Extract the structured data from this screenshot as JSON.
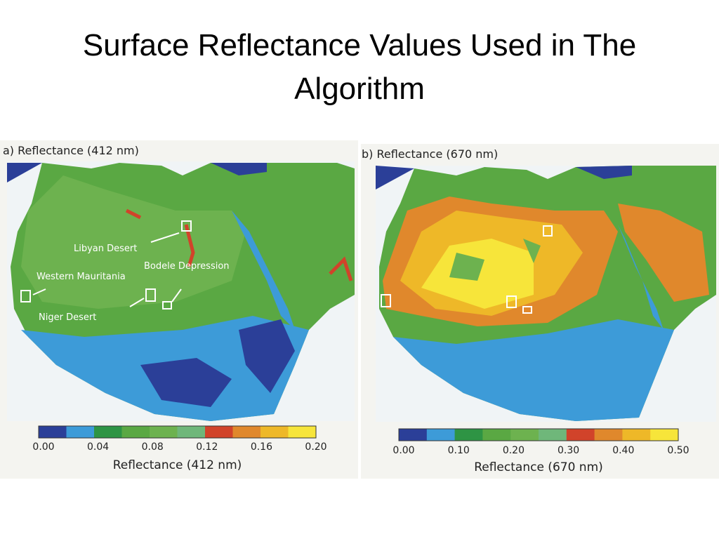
{
  "title": "Surface Reflectance Values Used in The Algorithm",
  "panels": [
    {
      "label": "a) Reflectance (412 nm)",
      "annotations": [
        "Libyan Desert",
        "Western Mauritania",
        "Bodele Depression",
        "Niger Desert"
      ],
      "colorbar": {
        "colors": [
          "#2b3f98",
          "#3d9bd8",
          "#2e9444",
          "#5aa843",
          "#6db24f",
          "#6fb77a",
          "#d1432a",
          "#e0882c",
          "#eeb828",
          "#f7e53a"
        ],
        "ticks": [
          "0.00",
          "0.04",
          "0.08",
          "0.12",
          "0.16",
          "0.20"
        ],
        "label": "Reflectance (412 nm)"
      }
    },
    {
      "label": "b) Reflectance (670 nm)",
      "annotations": [],
      "colorbar": {
        "colors": [
          "#2b3f98",
          "#3d9bd8",
          "#2e9444",
          "#5aa843",
          "#6db24f",
          "#6fb77a",
          "#d1432a",
          "#e0882c",
          "#eeb828",
          "#f7e53a"
        ],
        "ticks": [
          "0.00",
          "0.10",
          "0.20",
          "0.30",
          "0.40",
          "0.50"
        ],
        "label": "Reflectance (670 nm)"
      }
    }
  ]
}
